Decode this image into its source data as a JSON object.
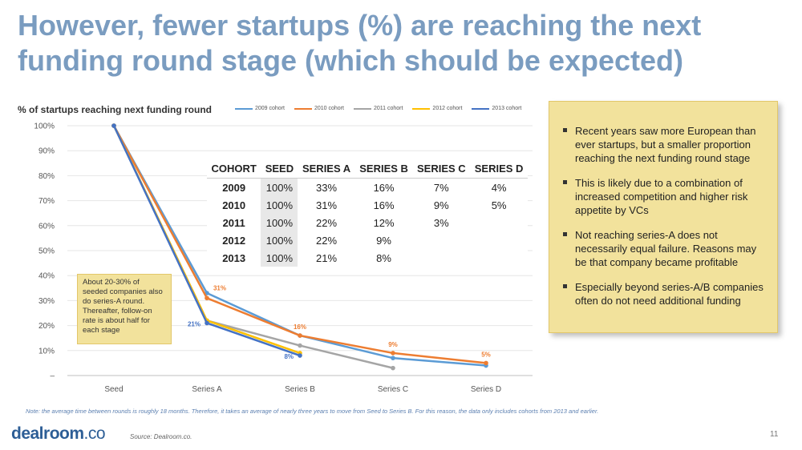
{
  "slide": {
    "title": "However, fewer startups (%) are reaching the next funding round stage (which should be expected)",
    "note": "Note: the average time between rounds is roughly 18 months. Therefore, it takes an average of nearly three years to move from Seed to Series B. For this reason, the data only includes cohorts from 2013 and earlier.",
    "logo_main": "dealroom",
    "logo_suffix": ".co",
    "source": "Source: Dealroom.co.",
    "page_number": "11"
  },
  "callout": {
    "text": "About 20-30% of seeded companies also do series-A round. Thereafter, follow-on rate is about half for each stage"
  },
  "side_box": {
    "bullets": [
      "Recent years saw more European than ever startups, but a smaller proportion reaching the next funding round stage",
      "This is likely due to a combination of increased competition and higher risk appetite by VCs",
      "Not reaching series-A does not necessarily equal failure. Reasons may be that company became profitable",
      "Especially beyond series-A/B companies often do not need additional funding"
    ]
  },
  "table": {
    "headers": [
      "COHORT",
      "SEED",
      "SERIES A",
      "SERIES B",
      "SERIES C",
      "SERIES D"
    ],
    "rows": [
      [
        "2009",
        "100%",
        "33%",
        "16%",
        "7%",
        "4%"
      ],
      [
        "2010",
        "100%",
        "31%",
        "16%",
        "9%",
        "5%"
      ],
      [
        "2011",
        "100%",
        "22%",
        "12%",
        "3%",
        ""
      ],
      [
        "2012",
        "100%",
        "22%",
        "9%",
        "",
        ""
      ],
      [
        "2013",
        "100%",
        "21%",
        "8%",
        "",
        ""
      ]
    ]
  },
  "chart_data": {
    "type": "line",
    "title": "% of startups reaching next funding round",
    "xlabel": "",
    "ylabel": "",
    "categories": [
      "Seed",
      "Series A",
      "Series B",
      "Series C",
      "Series D"
    ],
    "ylim": [
      0,
      100
    ],
    "yticks": [
      0,
      10,
      20,
      30,
      40,
      50,
      60,
      70,
      80,
      90,
      100
    ],
    "ytick_labels": [
      "–",
      "10%",
      "20%",
      "30%",
      "40%",
      "50%",
      "60%",
      "70%",
      "80%",
      "90%",
      "100%"
    ],
    "grid": true,
    "legend_position": "top",
    "series": [
      {
        "name": "2009 cohort",
        "color": "#5b9bd5",
        "values": [
          100,
          33,
          16,
          7,
          4
        ]
      },
      {
        "name": "2010 cohort",
        "color": "#ed7d31",
        "values": [
          100,
          31,
          16,
          9,
          5
        ]
      },
      {
        "name": "2011 cohort",
        "color": "#a5a5a5",
        "values": [
          100,
          22,
          12,
          3,
          null
        ]
      },
      {
        "name": "2012 cohort",
        "color": "#ffc000",
        "values": [
          100,
          22,
          9,
          null,
          null
        ]
      },
      {
        "name": "2013 cohort",
        "color": "#4472c4",
        "values": [
          100,
          21,
          8,
          null,
          null
        ]
      }
    ],
    "annotations": [
      {
        "text": "31%",
        "series": "2010 cohort",
        "category": "Series A",
        "color": "#ed7d31"
      },
      {
        "text": "21%",
        "series": "2013 cohort",
        "category": "Series A",
        "color": "#4472c4"
      },
      {
        "text": "16%",
        "series": "2010 cohort",
        "category": "Series B",
        "color": "#ed7d31"
      },
      {
        "text": "8%",
        "series": "2013 cohort",
        "category": "Series B",
        "color": "#4472c4"
      },
      {
        "text": "9%",
        "series": "2010 cohort",
        "category": "Series C",
        "color": "#ed7d31"
      },
      {
        "text": "5%",
        "series": "2010 cohort",
        "category": "Series D",
        "color": "#ed7d31"
      }
    ]
  }
}
